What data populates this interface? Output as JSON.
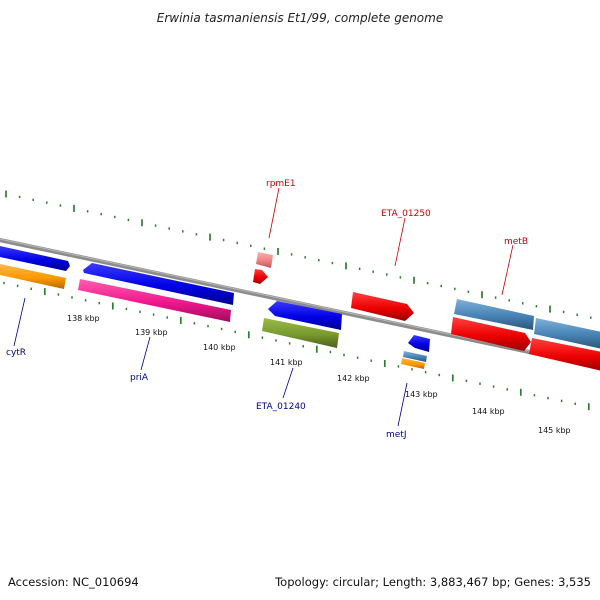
{
  "title": "Erwinia tasmaniensis Et1/99, complete genome",
  "footer": {
    "accession": "Accession: NC_010694",
    "topology": "Topology: circular; Length: 3,883,467 bp; Genes: 3,535"
  },
  "colors": {
    "backbone": "#8c8c8c",
    "ticks": "#2e7d32",
    "label_forward": "#cc0000",
    "label_reverse": "#00008b"
  },
  "ruler": {
    "unit_label_suffix": "kbp",
    "labels": [
      "138 kbp",
      "139 kbp",
      "140 kbp",
      "141 kbp",
      "142 kbp",
      "143 kbp",
      "144 kbp",
      "145 kbp"
    ]
  },
  "genes": [
    {
      "label": "cytR",
      "color": "#0000ee",
      "strand": "reverse",
      "labeled": true
    },
    {
      "label": "priA",
      "color": "#ff1493",
      "strand": "reverse",
      "labeled": true
    },
    {
      "label": "ETA_01240",
      "color": "#6b8e23",
      "strand": "reverse",
      "labeled": true
    },
    {
      "label": "rpmE1",
      "color": "#f08080",
      "strand": "forward",
      "labeled": true
    },
    {
      "label": "ETA_01250",
      "color": "#ee0000",
      "strand": "forward",
      "labeled": true
    },
    {
      "label": "metJ",
      "color": "#0000ee",
      "strand": "reverse",
      "labeled": true
    },
    {
      "label": "metB",
      "color": "#4682b4",
      "strand": "forward",
      "labeled": true
    }
  ]
}
